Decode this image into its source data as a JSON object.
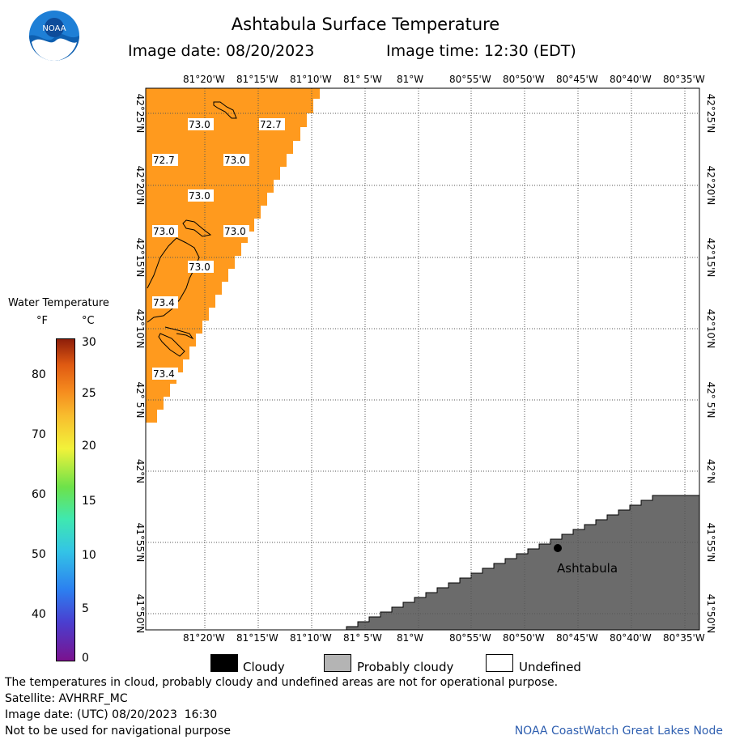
{
  "header": {
    "title": "Ashtabula Surface Temperature",
    "image_date": "Image date: 08/20/2023",
    "image_time": "Image time: 12:30 (EDT)"
  },
  "logo": {
    "text": "NOAA"
  },
  "map": {
    "lon_ticks": [
      "81°20'W",
      "81°15'W",
      "81°10'W",
      "81° 5'W",
      "81°W",
      "80°55'W",
      "80°50'W",
      "80°45'W",
      "80°40'W",
      "80°35'W"
    ],
    "lat_ticks": [
      "42°25'N",
      "42°20'N",
      "42°15'N",
      "42°10'N",
      "42° 5'N",
      "42°N",
      "41°55'N",
      "41°50'N"
    ],
    "temperature_labels": [
      "73.0",
      "72.7",
      "72.7",
      "73.0",
      "73.0",
      "73.0",
      "73.0",
      "73.0",
      "73.4",
      "73.4"
    ],
    "city": "Ashtabula",
    "colors": {
      "water": "#FF9A1E",
      "land": "#6B6B6B",
      "grid": "#555555"
    }
  },
  "scale": {
    "title": "Water Temperature",
    "unit_f": "°F",
    "unit_c": "°C",
    "f_ticks": [
      "80",
      "70",
      "60",
      "50",
      "40"
    ],
    "c_ticks": [
      "30",
      "25",
      "20",
      "15",
      "10",
      "5",
      "0"
    ]
  },
  "legend": {
    "cloudy": "Cloudy",
    "probably_cloudy": "Probably cloudy",
    "undefined": "Undefined"
  },
  "footer": {
    "disclaimer": "The temperatures in cloud, probably cloudy and undefined areas are not for operational purpose.",
    "satellite": "Satellite: AVHRRF_MC",
    "utc_date": "Image date: (UTC) 08/20/2023  16:30",
    "navigation": "Not to be used for navigational purpose",
    "credit": "NOAA CoastWatch Great Lakes Node"
  }
}
